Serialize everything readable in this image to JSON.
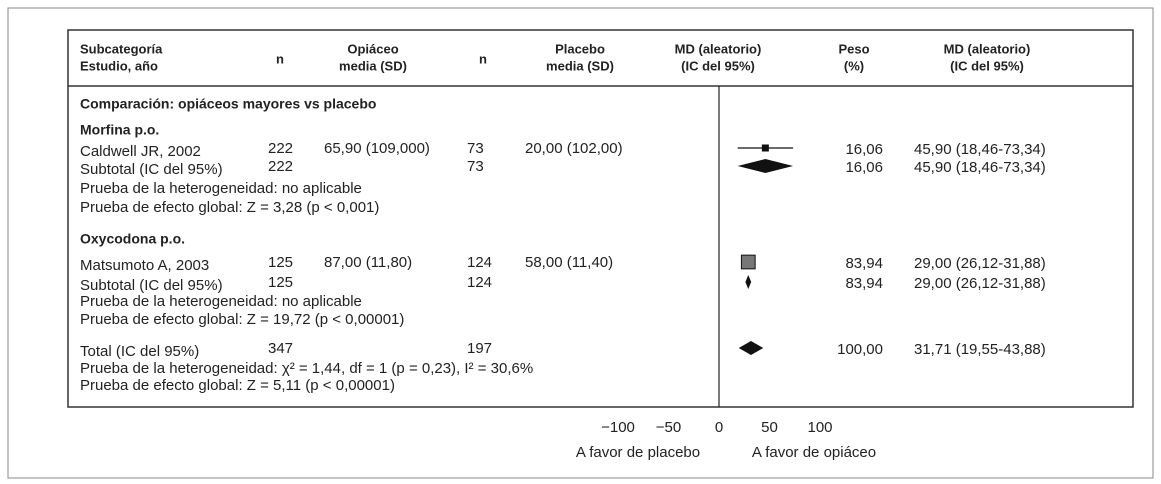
{
  "header": {
    "study": [
      "Subcategoría",
      "Estudio, año"
    ],
    "n1": "n",
    "treat": [
      "Opiáceo",
      "media (SD)"
    ],
    "n2": "n",
    "control": [
      "Placebo",
      "media (SD)"
    ],
    "md_plot": [
      "MD (aleatorio)",
      "(IC del 95%)"
    ],
    "weight": [
      "Peso",
      "(%)"
    ],
    "md": [
      "MD (aleatorio)",
      "(IC del 95%)"
    ]
  },
  "comparison": "Comparación: opiáceos mayores vs placebo",
  "groups": [
    {
      "name": "Morfina p.o.",
      "study": {
        "label": "Caldwell JR, 2002",
        "n1": 222,
        "treat": "65,90 (109,000)",
        "n2": 73,
        "control": "20,00 (102,00)",
        "weight": 16.06,
        "weight_label": "16,06",
        "md": 45.9,
        "ci": [
          18.46,
          73.34
        ],
        "md_label": "45,90 (18,46-73,34)"
      },
      "subtotal": {
        "label": "Subtotal (IC del 95%)",
        "n1": 222,
        "n2": 73,
        "weight": 16.06,
        "weight_label": "16,06",
        "md": 45.9,
        "ci": [
          18.46,
          73.34
        ],
        "md_label": "45,90 (18,46-73,34)"
      },
      "heterogeneity": "Prueba de la heterogeneidad: no aplicable",
      "effect": "Prueba de efecto global: Z = 3,28 (p < 0,001)"
    },
    {
      "name": "Oxycodona p.o.",
      "study": {
        "label": "Matsumoto A, 2003",
        "n1": 125,
        "treat": "87,00 (11,80)",
        "n2": 124,
        "control": "58,00 (11,40)",
        "weight": 83.94,
        "weight_label": "83,94",
        "md": 29.0,
        "ci": [
          26.12,
          31.88
        ],
        "md_label": "29,00 (26,12-31,88)"
      },
      "subtotal": {
        "label": "Subtotal (IC del 95%)",
        "n1": 125,
        "n2": 124,
        "weight": 83.94,
        "weight_label": "83,94",
        "md": 29.0,
        "ci": [
          26.12,
          31.88
        ],
        "md_label": "29,00 (26,12-31,88)"
      },
      "heterogeneity": "Prueba de la heterogeneidad: no aplicable",
      "effect": "Prueba de efecto global: Z = 19,72 (p < 0,00001)"
    }
  ],
  "total": {
    "label": "Total (IC del 95%)",
    "n1": 347,
    "n2": 197,
    "weight": 100,
    "weight_label": "100,00",
    "md": 31.71,
    "ci": [
      19.55,
      43.88
    ],
    "md_label": "31,71 (19,55-43,88)",
    "heterogeneity": "Prueba de la heterogeneidad: χ² = 1,44, df = 1 (p = 0,23), I² = 30,6%",
    "effect": "Prueba de efecto global: Z = 5,11 (p < 0,00001)"
  },
  "axis": {
    "ticks": [
      {
        "value": -100,
        "label": "−100"
      },
      {
        "value": -50,
        "label": "−50"
      },
      0,
      50,
      100
    ],
    "favors": [
      "A favor de placebo",
      "A favor de opiáceo"
    ]
  }
}
